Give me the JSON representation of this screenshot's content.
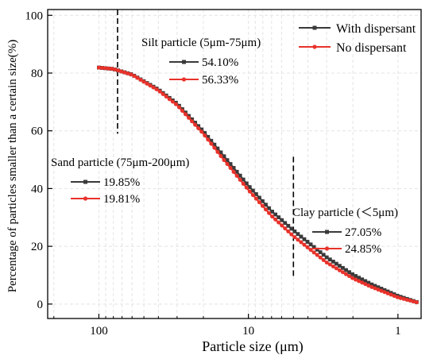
{
  "chart_data": {
    "type": "line",
    "xlabel": "Particle size (μm)",
    "ylabel": "Percentage of particles smaller than a certain  size(%)",
    "xscale": "log",
    "xreversed": true,
    "xlim": [
      220,
      0.7
    ],
    "ylim": [
      -5,
      102
    ],
    "xticks": [
      100,
      10,
      1
    ],
    "xtick_labels": [
      "100",
      "10",
      "1"
    ],
    "yticks": [
      0,
      20,
      40,
      60,
      80,
      100
    ],
    "ytick_labels": [
      "0",
      "20",
      "40",
      "60",
      "80",
      "100"
    ],
    "grid": true,
    "legend_position": "top-right",
    "series": [
      {
        "name": "With dispersant",
        "color": "#3a3a3a",
        "marker": "square",
        "x": [
          100,
          80,
          60,
          40,
          30,
          20,
          15,
          10,
          7,
          5,
          3,
          2,
          1.5,
          1,
          0.75
        ],
        "y": [
          81.9,
          81.4,
          79.5,
          74.3,
          69.4,
          59.8,
          52.0,
          41.0,
          32.2,
          25.5,
          16.2,
          10.2,
          6.8,
          2.8,
          0.7
        ]
      },
      {
        "name": "No dispersant",
        "color": "#e8322a",
        "marker": "circle",
        "x": [
          100,
          80,
          60,
          40,
          30,
          20,
          15,
          10,
          7,
          5,
          3,
          2,
          1.5,
          1,
          0.75
        ],
        "y": [
          81.9,
          81.4,
          79.4,
          74.0,
          68.9,
          59.0,
          50.7,
          39.5,
          30.5,
          23.5,
          14.4,
          8.9,
          5.9,
          2.3,
          0.6
        ]
      }
    ],
    "reference_lines": [
      {
        "x": 75,
        "y_from": 59,
        "y_to": 102
      },
      {
        "x": 5,
        "y_from": 9,
        "y_to": 51
      }
    ],
    "annotations": [
      {
        "title": "Silt particle (5μm-75μm)",
        "entries": [
          {
            "series": "With dispersant",
            "value": "54.10%"
          },
          {
            "series": "No dispersant",
            "value": "56.33%"
          }
        ]
      },
      {
        "title": "Sand particle (75μm-200μm)",
        "entries": [
          {
            "series": "With dispersant",
            "value": "19.85%"
          },
          {
            "series": "No dispersant",
            "value": "19.81%"
          }
        ]
      },
      {
        "title": "Clay particle (＜5μm)",
        "entries": [
          {
            "series": "With dispersant",
            "value": "27.05%"
          },
          {
            "series": "No dispersant",
            "value": "24.85%"
          }
        ]
      }
    ]
  }
}
